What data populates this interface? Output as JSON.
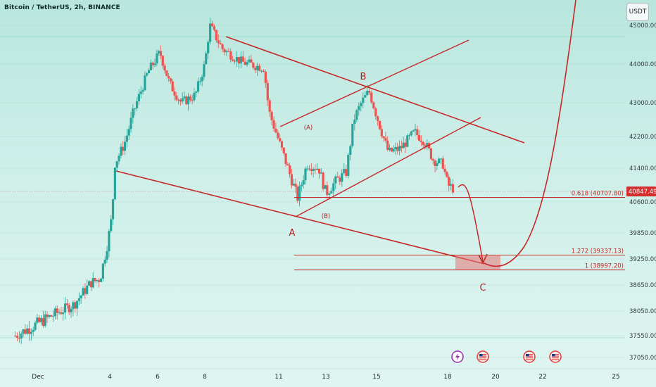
{
  "header": {
    "title": "Bitcoin / TetherUS, 2h, BINANCE"
  },
  "currency_label": "USDT",
  "colors": {
    "up": "#26a69a",
    "down": "#ef5350",
    "drawing": "#c62828",
    "zone": "#e57373",
    "price_tag": "#d32f2f"
  },
  "icons": [
    "lightning-icon",
    "us-flag-icon",
    "us-flag-icon",
    "us-flag-icon"
  ],
  "chart_data": {
    "type": "candlestick",
    "timeframe": "2h",
    "x_tick_labels": [
      "Dec",
      "4",
      "6",
      "8",
      "11",
      "13",
      "15",
      "18",
      "20",
      "22",
      "25"
    ],
    "y_ticks": [
      45000,
      44000,
      43000,
      42200,
      41400,
      40600,
      39850,
      39250,
      38650,
      38050,
      37550,
      37050
    ],
    "y_tick_labels": [
      "45000.00",
      "44000.00",
      "43000.00",
      "42200.00",
      "41400.00",
      "40600.00",
      "39850.00",
      "39250.00",
      "38650.00",
      "38050.00",
      "37550.00",
      "37050.00"
    ],
    "ylim": [
      36980,
      45600
    ],
    "last_price": "40847.49",
    "fib_levels": [
      {
        "label": "0.618 (40707.80)",
        "value": 40707.8
      },
      {
        "label": "1.272 (39337.13)",
        "value": 39337.13
      },
      {
        "label": "1 (38997.20)",
        "value": 38997.2
      }
    ],
    "wave_labels": [
      "A",
      "B",
      "C",
      "(A)",
      "(B)"
    ],
    "path_anchors": [
      [
        1.0,
        37800
      ],
      [
        2.5,
        38200
      ],
      [
        3.2,
        38700
      ],
      [
        3.6,
        38800
      ],
      [
        3.9,
        39600
      ],
      [
        4.1,
        40300
      ],
      [
        4.2,
        41500
      ],
      [
        4.6,
        42000
      ],
      [
        5.0,
        42800
      ],
      [
        5.6,
        43800
      ],
      [
        6.1,
        44300
      ],
      [
        6.5,
        43500
      ],
      [
        7.0,
        43000
      ],
      [
        7.6,
        43200
      ],
      [
        8.0,
        44000
      ],
      [
        8.2,
        45000
      ],
      [
        8.7,
        44400
      ],
      [
        9.5,
        44050
      ],
      [
        10.4,
        43900
      ],
      [
        10.6,
        42800
      ],
      [
        11.0,
        42100
      ],
      [
        11.5,
        41200
      ],
      [
        11.8,
        40700
      ],
      [
        12.2,
        41500
      ],
      [
        12.7,
        41400
      ],
      [
        13.0,
        40800
      ],
      [
        13.4,
        41100
      ],
      [
        13.8,
        41300
      ],
      [
        14.1,
        42600
      ],
      [
        14.4,
        43000
      ],
      [
        14.7,
        43300
      ],
      [
        15.0,
        42700
      ],
      [
        15.5,
        41800
      ],
      [
        16.0,
        41900
      ],
      [
        16.6,
        42300
      ],
      [
        17.0,
        42100
      ],
      [
        17.4,
        41600
      ],
      [
        17.8,
        41500
      ],
      [
        18.0,
        41000
      ],
      [
        18.3,
        40900
      ]
    ]
  }
}
